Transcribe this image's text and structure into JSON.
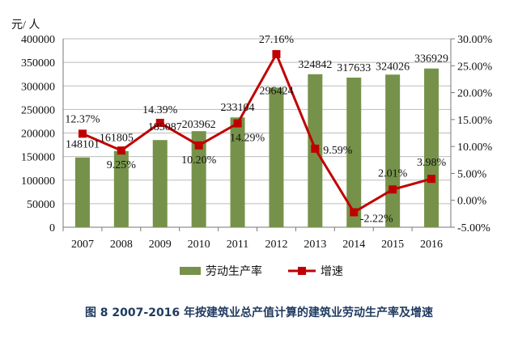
{
  "chart_data": {
    "type": "bar+line",
    "categories": [
      "2007",
      "2008",
      "2009",
      "2010",
      "2011",
      "2012",
      "2013",
      "2014",
      "2015",
      "2016"
    ],
    "series": [
      {
        "name": "劳动生产率",
        "type": "bar",
        "axis": "left",
        "color": "#76924a",
        "values": [
          148101,
          161805,
          185087,
          203962,
          233104,
          296424,
          324842,
          317633,
          324026,
          336929
        ],
        "labels": [
          "148101",
          "161805",
          "185087",
          "203962",
          "233104",
          "296424",
          "324842",
          "317633",
          "324026",
          "336929"
        ]
      },
      {
        "name": "增速",
        "type": "line",
        "axis": "right",
        "color": "#c00000",
        "values": [
          12.37,
          9.25,
          14.39,
          10.2,
          14.29,
          27.16,
          9.59,
          -2.22,
          2.01,
          3.98
        ],
        "labels": [
          "12.37%",
          "9.25%",
          "14.39%",
          "10.20%",
          "14.29%",
          "27.16%",
          "9.59%",
          "-2.22%",
          "2.01%",
          "3.98%"
        ]
      }
    ],
    "ylabel": "元/ 人",
    "ylim": [
      0,
      400000
    ],
    "yticks": [
      "0",
      "50000",
      "100000",
      "150000",
      "200000",
      "250000",
      "300000",
      "350000",
      "400000"
    ],
    "y2lim": [
      -5,
      30
    ],
    "y2ticks": [
      "-5.00%",
      "0.00%",
      "5.00%",
      "10.00%",
      "15.00%",
      "20.00%",
      "25.00%",
      "30.00%"
    ],
    "grid": true,
    "legend": "bottom"
  },
  "caption": "图 8   2007-2016 年按建筑业总产值计算的建筑业劳动生产率及增速"
}
